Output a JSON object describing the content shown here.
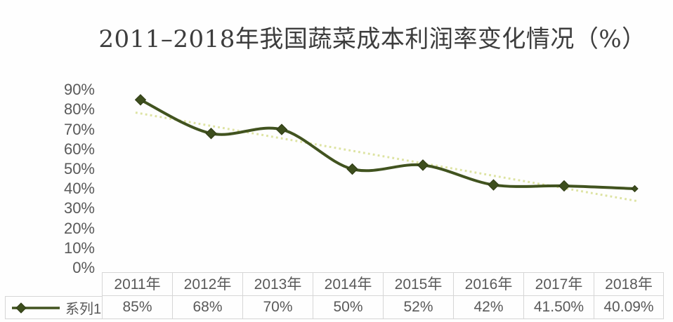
{
  "chart_data": {
    "type": "line",
    "title": "2011–2018年我国蔬菜成本利润率变化情况（%）",
    "categories": [
      "2011年",
      "2012年",
      "2013年",
      "2014年",
      "2015年",
      "2016年",
      "2017年",
      "2018年"
    ],
    "series": [
      {
        "name": "系列1",
        "values": [
          85,
          68,
          70,
          50,
          52,
          42,
          41.5,
          40.09
        ],
        "labels": [
          "85%",
          "68%",
          "70%",
          "50%",
          "52%",
          "42%",
          "41.50%",
          "40.09%"
        ]
      }
    ],
    "y_ticks": [
      "0%",
      "10%",
      "20%",
      "30%",
      "40%",
      "50%",
      "60%",
      "70%",
      "80%",
      "90%"
    ],
    "ylim": [
      0,
      90
    ],
    "grid": false,
    "legend_position": "bottom-left",
    "trendline": {
      "type": "linear",
      "style": "dotted"
    },
    "marker": "diamond",
    "line_style": "smooth",
    "data_table_shown": true,
    "colors": {
      "series": "#41531f",
      "marker_fill": "#3d4e1d",
      "marker_stroke": "#2e3a14",
      "trendline": "#dde3a2",
      "text": "#595959",
      "title_text": "#3d3d3d",
      "border": "#d6d6d6"
    }
  }
}
